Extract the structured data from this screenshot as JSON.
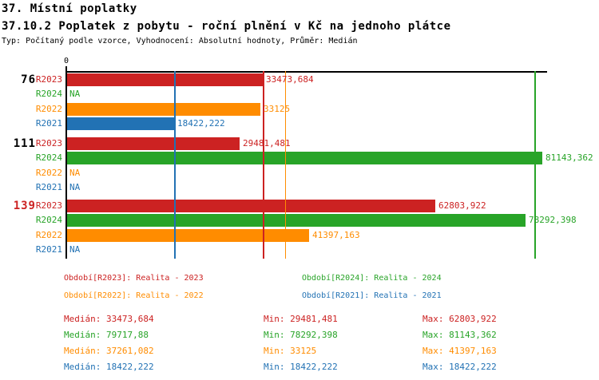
{
  "header": {
    "title": "37. Místní poplatky",
    "subtitle": "37.10.2 Poplatek z pobytu - roční plnění v Kč na jednoho plátce",
    "meta": "Typ: Počítaný podle vzorce, Vyhodnocení: Absolutní hodnoty, Průměr: Medián"
  },
  "colors": {
    "R2023": "#cc2222",
    "R2024": "#28a428",
    "R2022": "#ff8c00",
    "R2021": "#2272b4",
    "group_highlight": "#cc2222",
    "group_default": "#000000",
    "axis": "#000000"
  },
  "chart_data": {
    "type": "bar",
    "orientation": "horizontal",
    "title": "37.10.2 Poplatek z pobytu - roční plnění v Kč na jednoho plátce",
    "xlabel": "",
    "ylabel": "",
    "xlim": [
      0,
      81900
    ],
    "x_zero_label": "0",
    "grid": false,
    "na_label": "NA",
    "series_order": [
      "R2023",
      "R2024",
      "R2022",
      "R2021"
    ],
    "groups": [
      {
        "label": "76",
        "highlighted": false,
        "bars": [
          {
            "series": "R2023",
            "value": 33473.684,
            "display": "33473,684"
          },
          {
            "series": "R2024",
            "value": null,
            "display": "NA"
          },
          {
            "series": "R2022",
            "value": 33125,
            "display": "33125"
          },
          {
            "series": "R2021",
            "value": 18422.222,
            "display": "18422,222"
          }
        ]
      },
      {
        "label": "111",
        "highlighted": false,
        "bars": [
          {
            "series": "R2023",
            "value": 29481.481,
            "display": "29481,481"
          },
          {
            "series": "R2024",
            "value": 81143.362,
            "display": "81143,362"
          },
          {
            "series": "R2022",
            "value": null,
            "display": "NA"
          },
          {
            "series": "R2021",
            "value": null,
            "display": "NA"
          }
        ]
      },
      {
        "label": "139",
        "highlighted": true,
        "bars": [
          {
            "series": "R2023",
            "value": 62803.922,
            "display": "62803,922"
          },
          {
            "series": "R2024",
            "value": 78292.398,
            "display": "78292,398"
          },
          {
            "series": "R2022",
            "value": 41397.163,
            "display": "41397,163"
          },
          {
            "series": "R2021",
            "value": null,
            "display": "NA"
          }
        ]
      }
    ],
    "median_lines": [
      {
        "series": "R2023",
        "value": 33473.684
      },
      {
        "series": "R2024",
        "value": 79717.88
      },
      {
        "series": "R2022",
        "value": 37261.082
      },
      {
        "series": "R2021",
        "value": 18422.222
      }
    ]
  },
  "legend": {
    "items": [
      {
        "series": "R2023",
        "label": "Období[R2023]: Realita - 2023"
      },
      {
        "series": "R2024",
        "label": "Období[R2024]: Realita - 2024"
      },
      {
        "series": "R2022",
        "label": "Období[R2022]: Realita - 2022"
      },
      {
        "series": "R2021",
        "label": "Období[R2021]: Realita - 2021"
      }
    ]
  },
  "stats": {
    "rows": [
      {
        "series": "R2023",
        "median": "Medián: 33473,684",
        "min": "Min: 29481,481",
        "max": "Max: 62803,922"
      },
      {
        "series": "R2024",
        "median": "Medián: 79717,88",
        "min": "Min: 78292,398",
        "max": "Max: 81143,362"
      },
      {
        "series": "R2022",
        "median": "Medián: 37261,082",
        "min": "Min: 33125",
        "max": "Max: 41397,163"
      },
      {
        "series": "R2021",
        "median": "Medián: 18422,222",
        "min": "Min: 18422,222",
        "max": "Max: 18422,222"
      }
    ]
  }
}
